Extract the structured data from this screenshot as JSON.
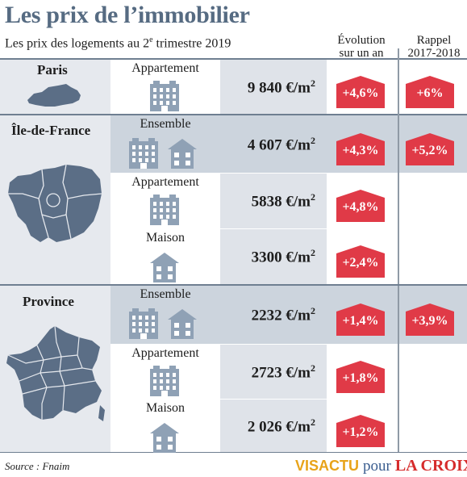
{
  "title": "Les prix de l’immobilier",
  "subtitle": {
    "text": "Les prix des logements au 2",
    "sup": "e",
    "rest": " trimestre 2019"
  },
  "columns": {
    "evolution": [
      "Évolution",
      "sur un an"
    ],
    "rappel": [
      "Rappel",
      "2017-2018"
    ]
  },
  "regions": {
    "paris": "Paris",
    "idf": "Île-de-France",
    "province": "Province"
  },
  "rows": [
    {
      "type": "Appartement",
      "price": "9 840 €/m",
      "unit_sup": "2",
      "evolution": "+4,6%",
      "rappel": "+6%"
    },
    {
      "type": "Ensemble",
      "price": "4 607 €/m",
      "unit_sup": "2",
      "evolution": "+4,3%",
      "rappel": "+5,2%"
    },
    {
      "type": "Appartement",
      "price": "5838 €/m",
      "unit_sup": "2",
      "evolution": "+4,8%",
      "rappel": ""
    },
    {
      "type": "Maison",
      "price": "3300 €/m",
      "unit_sup": "2",
      "evolution": "+2,4%",
      "rappel": ""
    },
    {
      "type": "Ensemble",
      "price": "2232 €/m",
      "unit_sup": "2",
      "evolution": "+1,4%",
      "rappel": "+3,9%"
    },
    {
      "type": "Appartement",
      "price": "2723 €/m",
      "unit_sup": "2",
      "evolution": "+1,8%",
      "rappel": ""
    },
    {
      "type": "Maison",
      "price": "2 026 €/m",
      "unit_sup": "2",
      "evolution": "+1,2%",
      "rappel": ""
    }
  ],
  "source": "Source : Fnaim",
  "logo": {
    "visactu": "VISACTU",
    "pour": "pour",
    "lacroix": "LA CROIX"
  },
  "colors": {
    "title": "#566b82",
    "badge": "#e03a47",
    "icon": "#8fa1b5",
    "map": "#5b6e86"
  }
}
